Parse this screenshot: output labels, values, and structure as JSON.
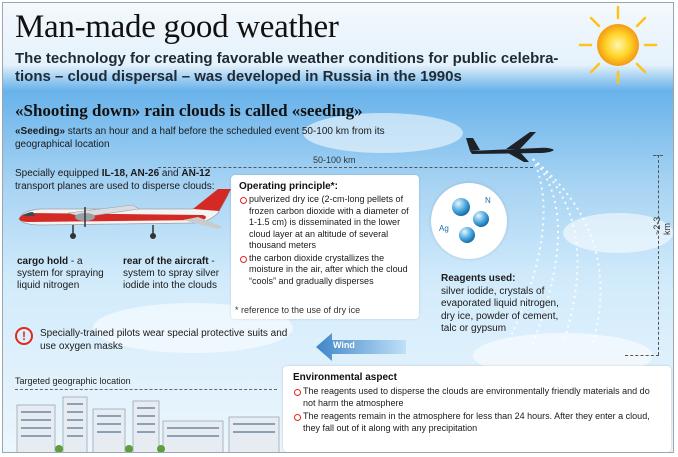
{
  "header": {
    "title": "Man-made good weather",
    "subtitle": "The technology for creating favorable weather conditions for public celebra-tions – cloud dispersal – was developed in Russia in the 1990s"
  },
  "seeding": {
    "heading": "«Shooting down» rain clouds is called «seeding»",
    "term": "«Seeding»",
    "text": " starts an hour and a half before the scheduled event 50-100 km from its geographical location"
  },
  "diagram": {
    "distance_label": "50-100 km",
    "altitude_label": "~2-3 km"
  },
  "transport": {
    "prefix": "Specially equipped ",
    "planes_1": "IL-18, AN-26",
    "and": " and ",
    "planes_2": "AN-12",
    "suffix": " transport planes are used to disperse clouds:"
  },
  "aircraft_parts": {
    "hold_term": "cargo hold",
    "hold_text": " - a system for spraying liquid nitrogen",
    "rear_term": "rear of the aircraft",
    "rear_text": " - system to spray silver iodide into the clouds"
  },
  "principle": {
    "title": "Operating principle*:",
    "items": [
      "pulverized dry ice (2-cm-long pellets of frozen carbon dioxide with a diameter of 1-1.5 cm) is disseminated in the lower cloud layer at an altitude of several thousand meters",
      "the carbon dioxide crystallizes the moisture in the air, after which the cloud “cools” and gradually disperses"
    ],
    "footnote": "* reference to the use of dry ice"
  },
  "molecule": {
    "label_n": "N",
    "label_ag": "Ag"
  },
  "reagents": {
    "title": "Reagents used:",
    "text": "silver iodide, crystals of evaporated liquid nitrogen, dry ice, powder of cement, talc or gypsum"
  },
  "pilots": {
    "icon": "!",
    "text": "Specially-trained pilots wear special protective suits and use oxygen masks"
  },
  "wind": {
    "label": "Wind"
  },
  "geo": {
    "label": "Targeted geographic location"
  },
  "environment": {
    "title": "Environmental aspect",
    "items": [
      "The reagents used to disperse the clouds are environmentally friendly materials and do not harm the atmosphere",
      "The reagents remain in the atmosphere for less than 24 hours. After they enter a cloud, they fall out of it along with any precipitation"
    ]
  },
  "colors": {
    "accent_red": "#e0281e",
    "sky_top": "#2f8fd8",
    "sky_bottom": "#ecf6fd",
    "wind_arrow": "#4a8fcf"
  }
}
